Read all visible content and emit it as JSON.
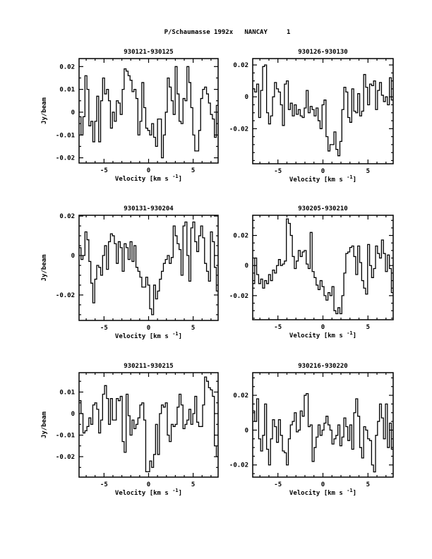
{
  "page_title": "P/Schaumasse 1992x   NANCAY     1",
  "chart_data": [
    {
      "type": "line",
      "style": "step",
      "title": "930121-930125",
      "xlabel": "Velocity [km s",
      "xlabel_sup": "-1",
      "xlabel_end": "]",
      "ylabel": "Jy/beam",
      "xlim": [
        -7.8,
        7.8
      ],
      "ylim": [
        -0.0223,
        0.0235
      ],
      "xticks": [
        -5,
        0,
        5
      ],
      "xtick_labels": [
        "-5",
        "0",
        "5"
      ],
      "yticks": [
        -0.02,
        -0.01,
        0,
        0.01,
        0.02
      ],
      "ytick_labels": [
        "-0.02",
        "-0.01",
        "0",
        "0.01",
        "0.02"
      ],
      "x_start": -7.8,
      "dx": 0.22,
      "values": [
        -0.002,
        -0.01,
        -0.002,
        0.016,
        0.01,
        -0.006,
        -0.004,
        -0.013,
        -0.004,
        0.007,
        -0.013,
        0.005,
        0.015,
        0.008,
        0.01,
        0.005,
        -0.007,
        0.0,
        -0.004,
        0.005,
        0.004,
        -0.001,
        0.01,
        0.019,
        0.018,
        0.016,
        0.014,
        0.009,
        0.01,
        0.006,
        -0.01,
        -0.004,
        0.013,
        0.002,
        -0.007,
        -0.008,
        -0.01,
        -0.005,
        -0.011,
        -0.015,
        -0.003,
        -0.003,
        -0.02,
        -0.01,
        0.0,
        0.015,
        0.011,
        0.005,
        -0.001,
        0.02,
        0.008,
        -0.004,
        -0.005,
        0.006,
        0.005,
        0.02,
        0.013,
        0.002,
        -0.01,
        -0.017,
        -0.017,
        -0.008,
        0.006,
        0.01,
        0.011,
        0.008,
        0.004,
        -0.001,
        -0.003,
        -0.011,
        0.003,
        0.005,
        0.006,
        -0.005
      ]
    },
    {
      "type": "line",
      "style": "step",
      "title": "930126-930130",
      "xlabel": "Velocity [km s",
      "xlabel_sup": "-1",
      "xlabel_end": "]",
      "ylabel": "",
      "xlim": [
        -7.8,
        7.8
      ],
      "ylim": [
        -0.042,
        0.024
      ],
      "xticks": [
        -5,
        0,
        5
      ],
      "xtick_labels": [
        "-5",
        "0",
        "5"
      ],
      "yticks": [
        -0.02,
        0,
        0.02
      ],
      "ytick_labels": [
        "-0.02",
        "0",
        "0.02"
      ],
      "x_start": -7.8,
      "dx": 0.22,
      "values": [
        0.005,
        0.003,
        0.008,
        -0.013,
        0.004,
        0.019,
        0.02,
        -0.01,
        -0.017,
        -0.012,
        0.0,
        0.009,
        0.005,
        0.003,
        -0.005,
        -0.018,
        0.008,
        0.01,
        -0.008,
        -0.004,
        -0.012,
        -0.005,
        -0.011,
        -0.008,
        -0.012,
        -0.013,
        -0.007,
        0.004,
        -0.01,
        -0.006,
        -0.008,
        -0.012,
        -0.007,
        -0.015,
        -0.02,
        -0.005,
        -0.002,
        -0.025,
        -0.034,
        -0.03,
        -0.03,
        -0.022,
        -0.033,
        -0.037,
        -0.028,
        -0.008,
        0.006,
        0.003,
        -0.013,
        -0.016,
        0.005,
        -0.009,
        -0.01,
        0.002,
        -0.012,
        -0.009,
        0.014,
        0.006,
        -0.005,
        0.008,
        0.007,
        0.01,
        -0.008,
        0.004,
        0.009,
        0.001,
        -0.003,
        0.0,
        -0.005,
        0.012,
        -0.002,
        0.006,
        0.003,
        0.018,
        0.01,
        -0.014,
        -0.01,
        -0.002
      ]
    },
    {
      "type": "line",
      "style": "step",
      "title": "930131-930204",
      "xlabel": "Velocity [km s",
      "xlabel_sup": "-1",
      "xlabel_end": "]",
      "ylabel": "Jy/beam",
      "xlim": [
        -7.8,
        7.8
      ],
      "ylim": [
        -0.0329,
        0.0204
      ],
      "xticks": [
        -5,
        0,
        5
      ],
      "xtick_labels": [
        "-5",
        "0",
        "5"
      ],
      "yticks": [
        -0.02,
        0,
        0.02
      ],
      "ytick_labels": [
        "-0.02",
        "0",
        "0.02"
      ],
      "x_start": -7.8,
      "dx": 0.22,
      "values": [
        0.004,
        -0.002,
        0.0,
        0.012,
        0.008,
        -0.003,
        -0.014,
        -0.024,
        -0.012,
        -0.005,
        -0.006,
        -0.01,
        0.0,
        0.005,
        -0.007,
        0.007,
        0.011,
        0.01,
        0.006,
        -0.004,
        0.007,
        0.004,
        -0.008,
        0.006,
        0.004,
        -0.002,
        0.007,
        -0.003,
        0.005,
        -0.006,
        -0.008,
        -0.011,
        -0.016,
        -0.016,
        -0.011,
        -0.015,
        -0.027,
        -0.03,
        -0.015,
        -0.022,
        -0.018,
        -0.012,
        -0.008,
        -0.004,
        -0.002,
        0.0,
        -0.004,
        -0.001,
        0.015,
        0.01,
        0.006,
        0.003,
        -0.01,
        0.015,
        0.017,
        0.0,
        -0.013,
        0.014,
        0.017,
        0.007,
        0.002,
        0.01,
        0.015,
        0.009,
        -0.004,
        -0.008,
        -0.013,
        0.012,
        0.007,
        -0.006,
        -0.018,
        -0.015,
        -0.022,
        0.005,
        -0.01,
        0.015
      ]
    },
    {
      "type": "line",
      "style": "step",
      "title": "930205-930210",
      "xlabel": "Velocity [km s",
      "xlabel_sup": "-1",
      "xlabel_end": "]",
      "ylabel": "",
      "xlim": [
        -7.8,
        7.8
      ],
      "ylim": [
        -0.036,
        0.0334
      ],
      "xticks": [
        -5,
        0,
        5
      ],
      "xtick_labels": [
        "-5",
        "0",
        "5"
      ],
      "yticks": [
        -0.02,
        0,
        0.02
      ],
      "ytick_labels": [
        "-0.02",
        "0",
        "0.02"
      ],
      "x_start": -7.8,
      "dx": 0.22,
      "values": [
        -0.012,
        0.005,
        -0.006,
        -0.012,
        -0.009,
        -0.015,
        -0.01,
        -0.012,
        -0.006,
        -0.01,
        -0.003,
        -0.005,
        0.0,
        0.004,
        0.0,
        0.001,
        0.003,
        0.031,
        0.028,
        0.02,
        0.006,
        -0.002,
        0.003,
        0.01,
        0.006,
        0.009,
        0.01,
        0.001,
        -0.002,
        0.022,
        -0.004,
        -0.008,
        -0.013,
        -0.016,
        -0.01,
        -0.014,
        -0.02,
        -0.023,
        -0.018,
        -0.02,
        -0.014,
        -0.03,
        -0.032,
        -0.028,
        -0.032,
        -0.02,
        -0.005,
        0.008,
        0.009,
        0.012,
        0.013,
        0.006,
        -0.006,
        0.013,
        0.002,
        -0.01,
        -0.015,
        -0.019,
        0.014,
        0.0,
        -0.008,
        -0.002,
        0.013,
        0.008,
        0.005,
        0.017,
        0.008,
        -0.004,
        0.007,
        -0.002,
        -0.018,
        0.008,
        -0.008,
        -0.012,
        0.0,
        -0.004
      ]
    },
    {
      "type": "line",
      "style": "step",
      "title": "930211-930215",
      "xlabel": "Velocity [km s",
      "xlabel_sup": "-1",
      "xlabel_end": "]",
      "ylabel": "Jy/beam",
      "xlim": [
        -7.8,
        7.8
      ],
      "ylim": [
        -0.0295,
        0.019
      ],
      "xticks": [
        -5,
        0,
        5
      ],
      "xtick_labels": [
        "-5",
        "0",
        "5"
      ],
      "yticks": [
        -0.02,
        -0.01,
        0,
        0.01
      ],
      "ytick_labels": [
        "-0.02",
        "-0.01",
        "0",
        "0.01"
      ],
      "x_start": -7.8,
      "dx": 0.22,
      "values": [
        0.006,
        0.0,
        -0.009,
        -0.008,
        -0.006,
        -0.002,
        -0.005,
        0.004,
        0.005,
        0.002,
        -0.009,
        -0.003,
        0.009,
        0.013,
        0.007,
        -0.005,
        0.007,
        -0.003,
        -0.003,
        0.007,
        0.006,
        0.008,
        -0.013,
        -0.018,
        0.009,
        -0.001,
        -0.01,
        -0.003,
        -0.007,
        -0.005,
        -0.002,
        0.004,
        0.005,
        -0.003,
        -0.027,
        -0.027,
        -0.022,
        -0.025,
        -0.019,
        -0.005,
        -0.019,
        0.0,
        0.004,
        0.003,
        0.005,
        -0.01,
        -0.013,
        -0.005,
        -0.006,
        -0.005,
        0.003,
        0.009,
        0.004,
        -0.007,
        -0.005,
        -0.003,
        0.002,
        -0.005,
        0.0,
        0.008,
        -0.004,
        -0.006,
        -0.006,
        0.004,
        0.017,
        0.015,
        0.012,
        0.011,
        0.008,
        -0.015,
        -0.02,
        -0.004,
        -0.011,
        -0.004
      ]
    },
    {
      "type": "line",
      "style": "step",
      "title": "930216-930220",
      "xlabel": "Velocity [km s",
      "xlabel_sup": "-1",
      "xlabel_end": "]",
      "ylabel": "",
      "xlim": [
        -7.8,
        7.8
      ],
      "ylim": [
        -0.027,
        0.033
      ],
      "xticks": [
        -5,
        0,
        5
      ],
      "xtick_labels": [
        "-5",
        "0",
        "5"
      ],
      "yticks": [
        -0.02,
        0,
        0.02
      ],
      "ytick_labels": [
        "-0.02",
        "0",
        "0.02"
      ],
      "x_start": -7.8,
      "dx": 0.22,
      "values": [
        0.011,
        0.005,
        0.018,
        -0.005,
        -0.012,
        -0.003,
        0.015,
        -0.011,
        -0.02,
        -0.005,
        0.006,
        0.002,
        -0.007,
        0.006,
        -0.003,
        -0.012,
        -0.013,
        -0.02,
        -0.005,
        0.003,
        0.005,
        0.01,
        -0.001,
        0.0,
        0.011,
        0.008,
        0.02,
        0.021,
        0.002,
        0.003,
        -0.018,
        -0.01,
        -0.004,
        0.003,
        -0.003,
        0.0,
        0.004,
        0.008,
        0.003,
        0.0,
        -0.008,
        -0.005,
        -0.003,
        0.003,
        -0.009,
        -0.004,
        0.007,
        0.002,
        -0.006,
        0.003,
        -0.011,
        0.01,
        0.018,
        0.008,
        -0.01,
        -0.016,
        0.002,
        0.0,
        -0.005,
        -0.006,
        -0.02,
        -0.024,
        -0.003,
        0.005,
        0.015,
        0.007,
        -0.005,
        0.015,
        -0.01,
        0.004,
        -0.011,
        -0.004
      ]
    }
  ]
}
